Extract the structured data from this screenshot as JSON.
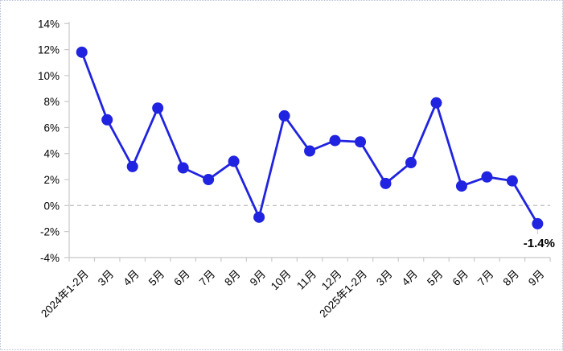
{
  "chart_data": {
    "type": "line",
    "categories": [
      "2024年1-2月",
      "3月",
      "4月",
      "5月",
      "6月",
      "7月",
      "8月",
      "9月",
      "10月",
      "11月",
      "12月",
      "2025年1-2月",
      "3月",
      "4月",
      "5月",
      "6月",
      "7月",
      "8月",
      "9月"
    ],
    "values": [
      11.8,
      6.6,
      3.0,
      7.5,
      2.9,
      2.0,
      3.4,
      -0.9,
      6.9,
      4.2,
      5.0,
      4.9,
      1.7,
      3.3,
      7.9,
      1.5,
      2.2,
      1.9,
      -1.4
    ],
    "title": "",
    "xlabel": "",
    "ylabel": "",
    "ylim": [
      -4,
      14
    ],
    "ytick_step": 2,
    "ytick_labels": [
      "14%",
      "12%",
      "10%",
      "8%",
      "6%",
      "4%",
      "2%",
      "0%",
      "-2%",
      "-4%"
    ],
    "grid": "zero-line-dashed-only",
    "legend": "none",
    "annotation": {
      "text": "-1.4%",
      "point_index": 18
    }
  },
  "colors": {
    "line": "#2023DF",
    "marker": "#2023DF",
    "axis": "#c9c9c9",
    "zero_line": "#c4c4c4",
    "tick_text": "#000000",
    "annotation_text": "#000000",
    "background": "#ffffff"
  }
}
